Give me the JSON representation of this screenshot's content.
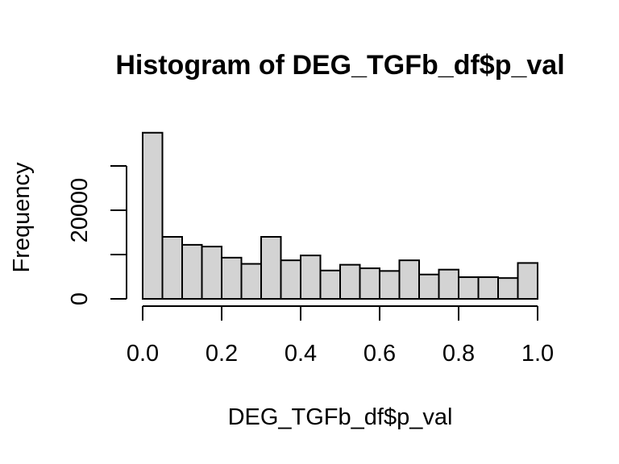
{
  "chart_data": {
    "type": "bar",
    "subtype": "histogram",
    "title": "Histogram of DEG_TGFb_df$p_val",
    "xlabel": "DEG_TGFb_df$p_val",
    "ylabel": "Frequency",
    "bin_edges": [
      0.0,
      0.05,
      0.1,
      0.15,
      0.2,
      0.25,
      0.3,
      0.35,
      0.4,
      0.45,
      0.5,
      0.55,
      0.6,
      0.65,
      0.7,
      0.75,
      0.8,
      0.85,
      0.9,
      0.95,
      1.0
    ],
    "values": [
      37500,
      14000,
      12200,
      11800,
      9300,
      7900,
      14000,
      8700,
      9800,
      6400,
      7700,
      6900,
      6300,
      8700,
      5500,
      6600,
      4900,
      4900,
      4700,
      8100
    ],
    "xlim": [
      0.0,
      1.0
    ],
    "ylim": [
      0,
      30000
    ],
    "x_ticks": [
      0.0,
      0.2,
      0.4,
      0.6,
      0.8,
      1.0
    ],
    "x_tick_labels": [
      "0.0",
      "0.2",
      "0.4",
      "0.6",
      "0.8",
      "1.0"
    ],
    "y_ticks": [
      0,
      10000,
      20000,
      30000
    ],
    "y_tick_labels": [
      "0",
      "",
      "20000",
      ""
    ],
    "bar_color": "#d3d3d3",
    "edge_color": "#000000",
    "grid": false
  }
}
